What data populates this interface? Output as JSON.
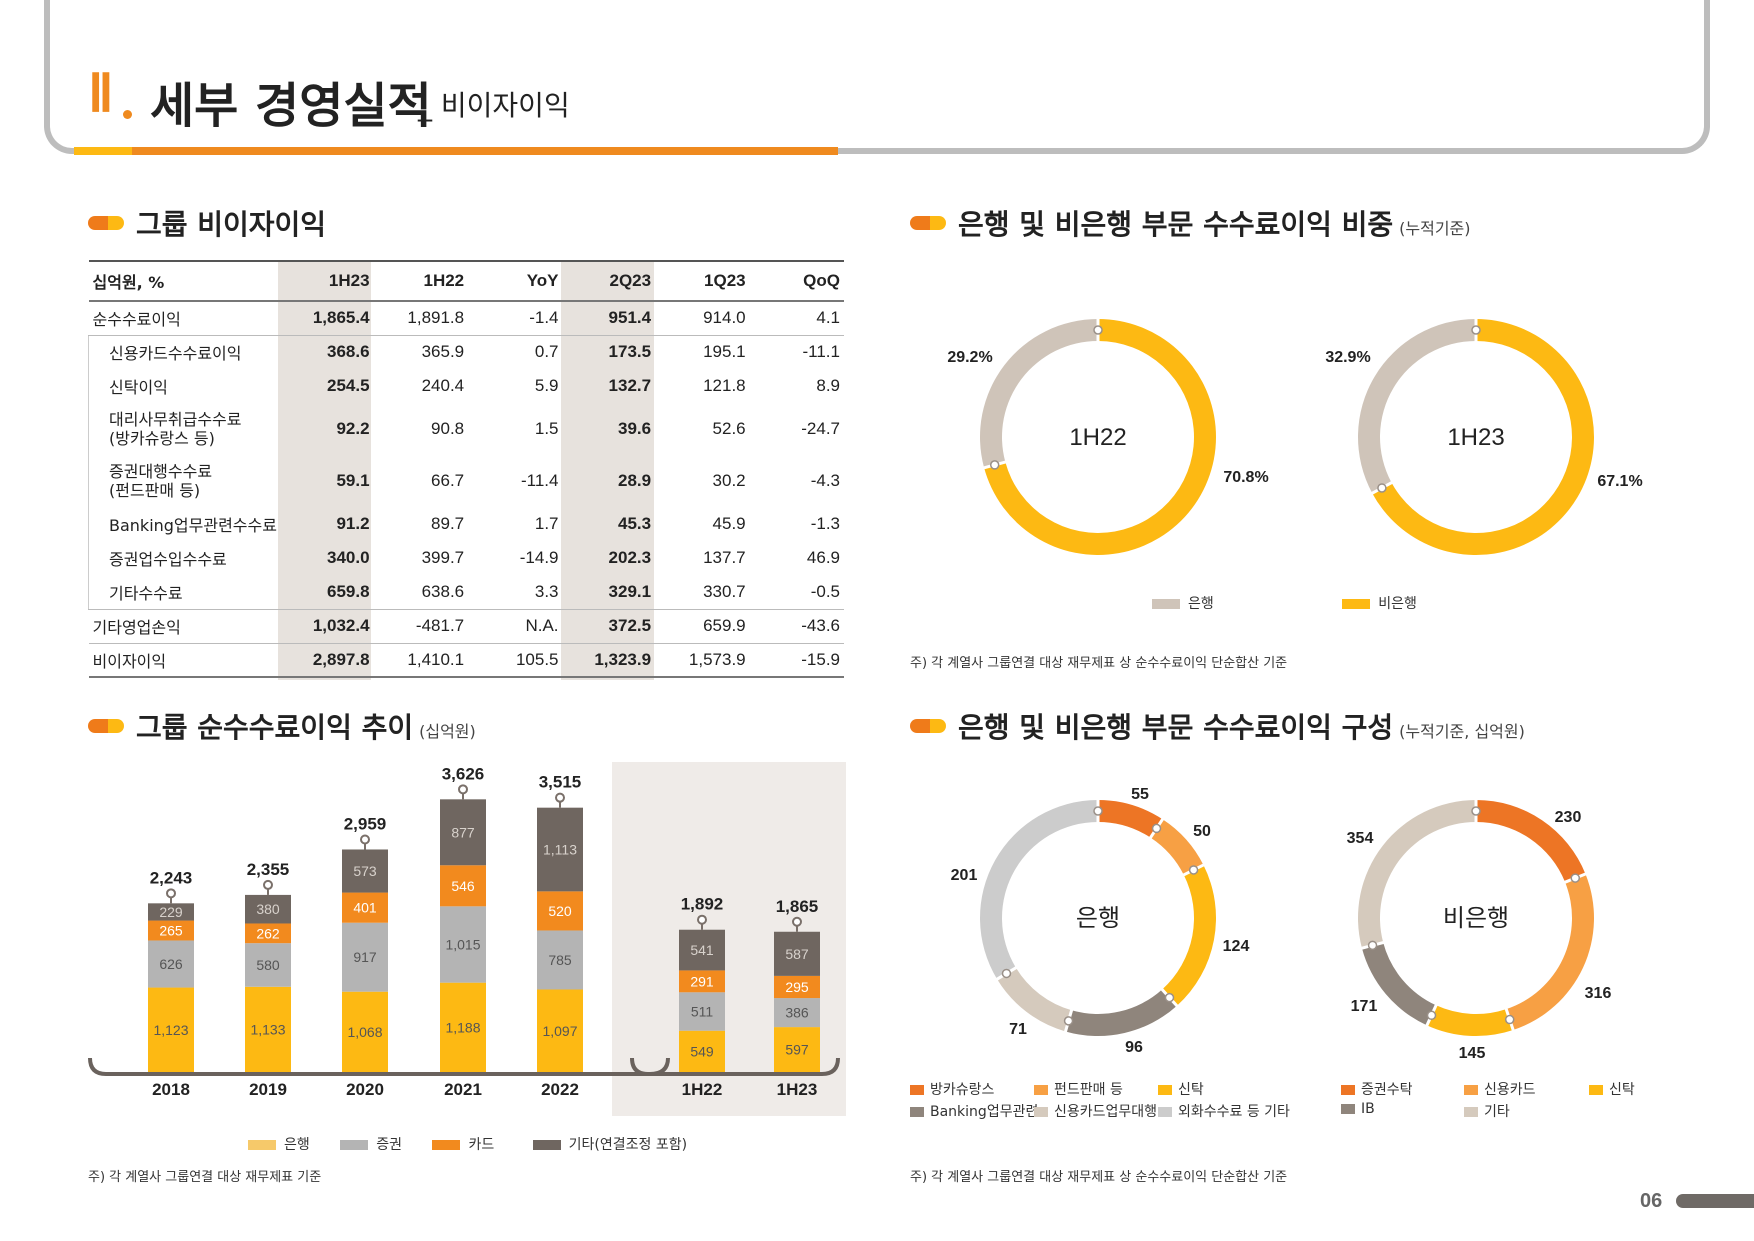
{
  "header": {
    "roman": "Ⅱ",
    "title": "세부 경영실적",
    "subtitle": "_ 비이자이익"
  },
  "table_section": {
    "title": "그룹 비이자이익",
    "columns": [
      "십억원, %",
      "1H23",
      "1H22",
      "YoY",
      "2Q23",
      "1Q23",
      "QoQ"
    ],
    "rows": [
      {
        "label": "순수수료이익",
        "values": [
          "1,865.4",
          "1,891.8",
          "-1.4",
          "951.4",
          "914.0",
          "4.1"
        ]
      },
      {
        "label": "신용카드수수료이익",
        "values": [
          "368.6",
          "365.9",
          "0.7",
          "173.5",
          "195.1",
          "-11.1"
        ]
      },
      {
        "label": "신탁이익",
        "values": [
          "254.5",
          "240.4",
          "5.9",
          "132.7",
          "121.8",
          "8.9"
        ]
      },
      {
        "label": "대리사무취급수수료",
        "label2": "(방카슈랑스 등)",
        "values": [
          "92.2",
          "90.8",
          "1.5",
          "39.6",
          "52.6",
          "-24.7"
        ]
      },
      {
        "label": "증권대행수수료",
        "label2": "(펀드판매 등)",
        "values": [
          "59.1",
          "66.7",
          "-11.4",
          "28.9",
          "30.2",
          "-4.3"
        ]
      },
      {
        "label": "Banking업무관련수수료",
        "values": [
          "91.2",
          "89.7",
          "1.7",
          "45.3",
          "45.9",
          "-1.3"
        ]
      },
      {
        "label": "증권업수입수수료",
        "values": [
          "340.0",
          "399.7",
          "-14.9",
          "202.3",
          "137.7",
          "46.9"
        ]
      },
      {
        "label": "기타수수료",
        "values": [
          "659.8",
          "638.6",
          "3.3",
          "329.1",
          "330.7",
          "-0.5"
        ]
      },
      {
        "label": "기타영업손익",
        "values": [
          "1,032.4",
          "-481.7",
          "N.A.",
          "372.5",
          "659.9",
          "-43.6"
        ]
      },
      {
        "label": "비이자이익",
        "values": [
          "2,897.8",
          "1,410.1",
          "105.5",
          "1,323.9",
          "1,573.9",
          "-15.9"
        ]
      }
    ]
  },
  "trend_section": {
    "title": "그룹 순수수료이익 추이",
    "unit": "(십억원)",
    "note": "주) 각 계열사 그룹연결 대상 재무제표 기준",
    "legend": [
      "은행",
      "증권",
      "카드",
      "기타(연결조정 포함)"
    ]
  },
  "share_section": {
    "title": "은행 및 비은행 부문 수수료이익 비중",
    "unit": "(누적기준)",
    "legend": [
      "은행",
      "비은행"
    ],
    "note": "주) 각 계열사 그룹연결 대상 재무제표 상 순수수료이익 단순합산 기준"
  },
  "comp_section": {
    "title": "은행 및 비은행 부문 수수료이익 구성",
    "unit": "(누적기준, 십억원)",
    "legend_bank": [
      "방카슈랑스",
      "펀드판매 등",
      "신탁",
      "Banking업무관련",
      "신용카드업무대행",
      "외화수수료 등 기타"
    ],
    "legend_nonbank": [
      "증권수탁",
      "신용카드",
      "신탁",
      "IB",
      "기타"
    ],
    "note": "주) 각 계열사 그룹연결 대상 재무제표 상 순수수료이익 단순합산 기준"
  },
  "page_number": "06",
  "colors": {
    "bank": "#fdb913",
    "securities": "#b4b4b4",
    "card": "#f28a1e",
    "other": "#6f6660",
    "bank_share": "#cfc4b9",
    "nonbank_share": "#fdb913",
    "c_orange_dark": "#ed7525",
    "c_orange_light": "#f7a044",
    "c_yellow": "#fdb913",
    "c_brown": "#8f857c",
    "c_beige": "#d5cabd",
    "c_gray": "#cccccc"
  },
  "chart_data": [
    {
      "type": "bar",
      "stacked": true,
      "categories": [
        "2018",
        "2019",
        "2020",
        "2021",
        "2022",
        "1H22",
        "1H23"
      ],
      "series": [
        {
          "name": "은행",
          "values": [
            1123,
            1133,
            1068,
            1188,
            1097,
            549,
            597
          ]
        },
        {
          "name": "증권",
          "values": [
            626,
            580,
            917,
            1015,
            785,
            511,
            386
          ]
        },
        {
          "name": "카드",
          "values": [
            265,
            262,
            401,
            546,
            520,
            291,
            295
          ]
        },
        {
          "name": "기타(연결조정 포함)",
          "values": [
            229,
            380,
            573,
            877,
            1113,
            541,
            587
          ]
        }
      ],
      "totals": [
        2243,
        2355,
        2959,
        3626,
        3515,
        1892,
        1865
      ],
      "title": "그룹 순수수료이익 추이"
    },
    {
      "type": "pie",
      "donut": true,
      "center_label": "1H22",
      "labels": [
        "은행",
        "비은행"
      ],
      "values": [
        29.2,
        70.8
      ]
    },
    {
      "type": "pie",
      "donut": true,
      "center_label": "1H23",
      "labels": [
        "은행",
        "비은행"
      ],
      "values": [
        32.9,
        67.1
      ]
    },
    {
      "type": "pie",
      "donut": true,
      "center_label": "은행",
      "labels": [
        "방카슈랑스",
        "펀드판매 등",
        "신탁",
        "Banking업무관련",
        "신용카드업무대행",
        "외화수수료 등 기타"
      ],
      "values": [
        55,
        50,
        124,
        96,
        71,
        201
      ]
    },
    {
      "type": "pie",
      "donut": true,
      "center_label": "비은행",
      "labels": [
        "증권수탁",
        "신용카드",
        "신탁",
        "IB",
        "기타"
      ],
      "values": [
        230,
        316,
        145,
        171,
        354
      ]
    }
  ]
}
